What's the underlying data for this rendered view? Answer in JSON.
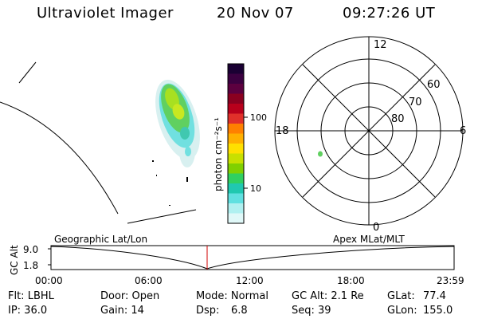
{
  "header": {
    "instrument": "Ultraviolet Imager",
    "date": "20 Nov 07",
    "time": "09:27:26 UT"
  },
  "colorbar": {
    "label": "photon cm⁻²s⁻¹",
    "ticks": [
      "100",
      "10"
    ],
    "colors": [
      "#1a0033",
      "#3b0040",
      "#5c003f",
      "#8a0020",
      "#b8001c",
      "#e0302a",
      "#ff8000",
      "#ffb000",
      "#ffe000",
      "#c8e000",
      "#80d000",
      "#30d060",
      "#20c8b0",
      "#60e0e0",
      "#b0f0f0",
      "#e0f8f8"
    ]
  },
  "polar": {
    "mlt_labels": {
      "top": "12",
      "right": "6",
      "bottom": "0",
      "left": "18"
    },
    "lat_labels": [
      "60",
      "70",
      "80"
    ]
  },
  "timeline": {
    "left_title": "Geographic Lat/Lon",
    "right_title": "Apex MLat/MLT",
    "yaxis_label": "GC Alt",
    "y_top": "9.0",
    "y_bottom": "1.8",
    "x_ticks": [
      "00:00",
      "06:00",
      "12:00",
      "18:00",
      "23:59"
    ],
    "marker_color": "#d00000"
  },
  "info": {
    "flt": "Flt: LBHL",
    "ip": "IP: 36.0",
    "door": "Door: Open",
    "gain": "Gain: 14",
    "mode": "Mode: Normal",
    "dsp_label": "Dsp:",
    "dsp_value": "6.8",
    "gcalt": "GC Alt: 2.1 Re",
    "seq": "Seq: 39",
    "glat_label": "GLat:",
    "glat_value": "77.4",
    "glon_label": "GLon:",
    "glon_value": "155.0"
  }
}
